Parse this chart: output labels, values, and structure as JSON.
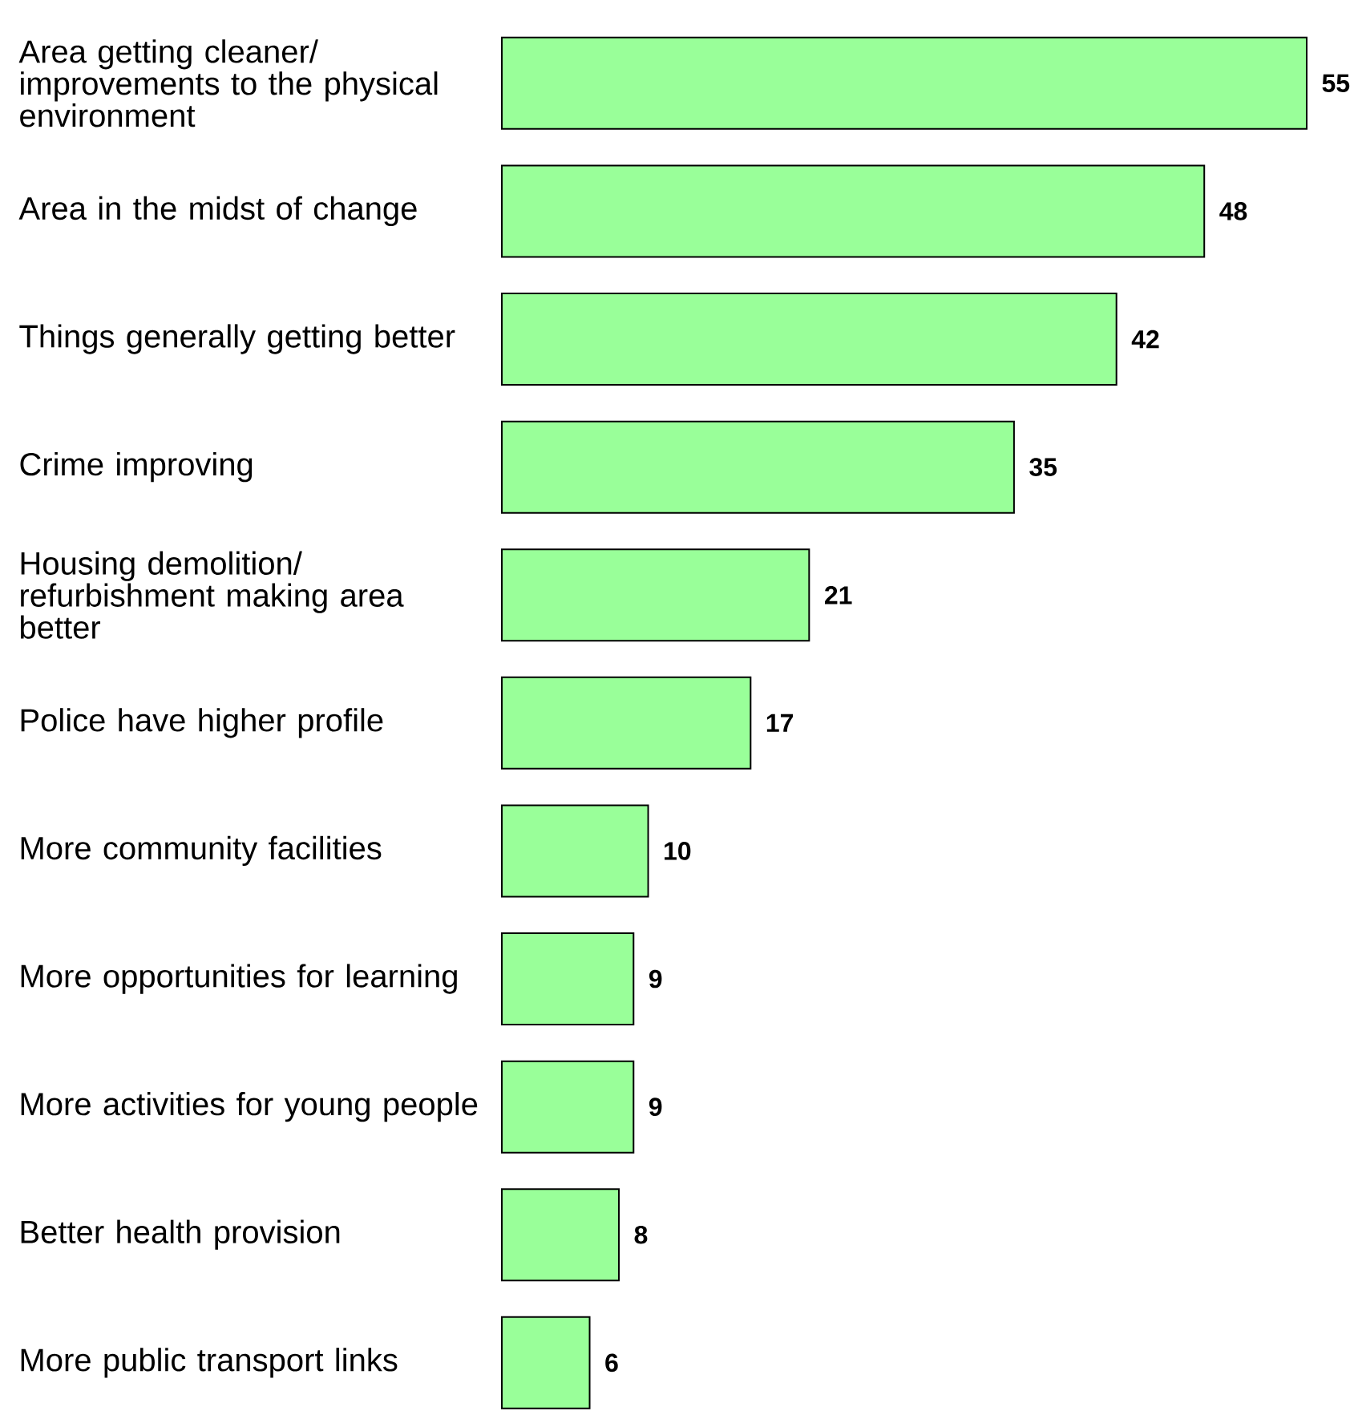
{
  "chart_data": {
    "type": "bar",
    "orientation": "horizontal",
    "categories": [
      "Area getting cleaner/ improvements to the physical environment",
      "Area in the midst of change",
      "Things generally getting better",
      "Crime improving",
      "Housing demolition/ refurbishment making area better",
      "Police have higher profile",
      "More community facilities",
      "More opportunities for learning",
      "More activities for young people",
      "Better health provision",
      "More public transport links"
    ],
    "values": [
      55,
      48,
      42,
      35,
      21,
      17,
      10,
      9,
      9,
      8,
      6
    ],
    "color": "#99ff99",
    "data_labels": true,
    "tick_labels": "y"
  }
}
